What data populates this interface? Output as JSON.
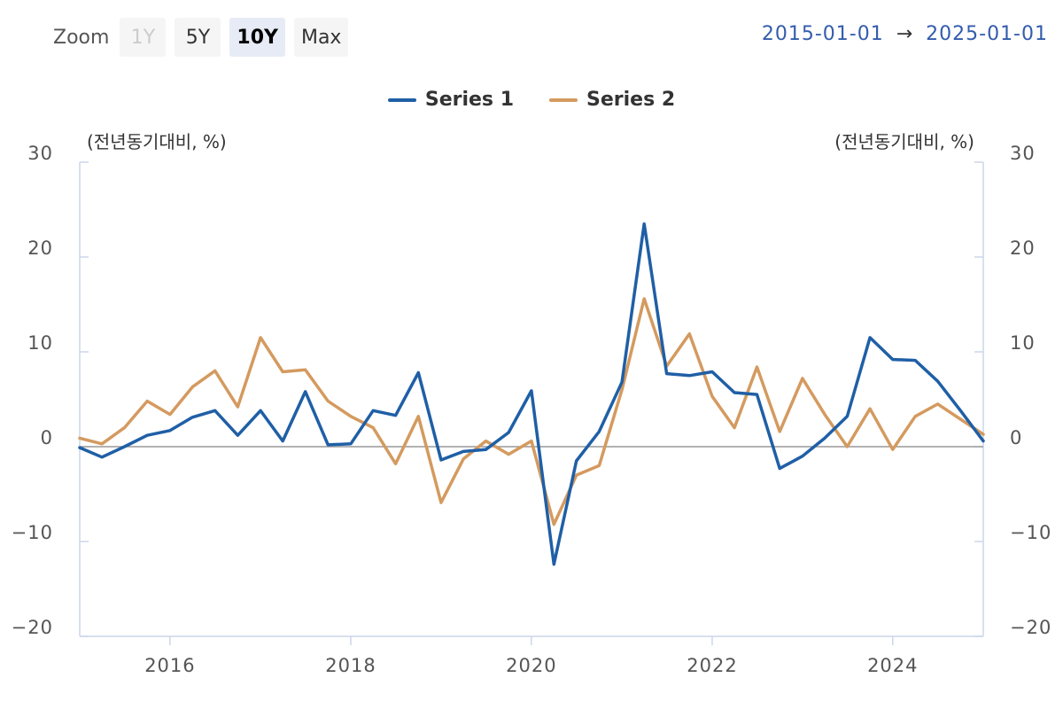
{
  "zoom": {
    "label": "Zoom",
    "buttons": [
      {
        "label": "1Y",
        "state": "disabled"
      },
      {
        "label": "5Y",
        "state": "normal"
      },
      {
        "label": "10Y",
        "state": "selected"
      },
      {
        "label": "Max",
        "state": "normal"
      }
    ]
  },
  "range": {
    "from": "2015-01-01",
    "arrow": "→",
    "to": "2025-01-01"
  },
  "colors": {
    "series1": "#1f5fa6",
    "series2": "#d49a5f",
    "axis": "#ccd6eb",
    "zero_line": "#999999"
  },
  "chart_data": {
    "type": "line",
    "title": "",
    "left_axis": {
      "label": "(전년동기대비, %)",
      "range": [
        -20,
        30
      ],
      "ticks": [
        "30",
        "20",
        "10",
        "0",
        "−10",
        "−20"
      ]
    },
    "right_axis": {
      "label": "(전년동기대비, %)",
      "range": [
        -20,
        30
      ],
      "ticks": [
        "30",
        "20",
        "10",
        "0",
        "−10",
        "−20"
      ]
    },
    "x_ticks": [
      "2016",
      "2018",
      "2020",
      "2022",
      "2024"
    ],
    "x_range": [
      "2015-01-01",
      "2025-01-01"
    ],
    "legend_position": "top-center",
    "grid": false,
    "series": [
      {
        "name": "Series 1",
        "color": "#1f5fa6",
        "points": [
          [
            "2015-01-01",
            -0.1
          ],
          [
            "2015-04-01",
            -1.1
          ],
          [
            "2015-07-01",
            0.0
          ],
          [
            "2015-10-01",
            1.2
          ],
          [
            "2016-01-01",
            1.7
          ],
          [
            "2016-04-01",
            3.1
          ],
          [
            "2016-07-01",
            3.8
          ],
          [
            "2016-10-01",
            1.2
          ],
          [
            "2017-01-01",
            3.8
          ],
          [
            "2017-04-01",
            0.6
          ],
          [
            "2017-07-01",
            5.8
          ],
          [
            "2017-10-01",
            0.2
          ],
          [
            "2018-01-01",
            0.3
          ],
          [
            "2018-04-01",
            3.8
          ],
          [
            "2018-07-01",
            3.3
          ],
          [
            "2018-10-01",
            7.8
          ],
          [
            "2019-01-01",
            -1.4
          ],
          [
            "2019-04-01",
            -0.5
          ],
          [
            "2019-07-01",
            -0.3
          ],
          [
            "2019-10-01",
            1.5
          ],
          [
            "2020-01-01",
            5.9
          ],
          [
            "2020-04-01",
            -12.4
          ],
          [
            "2020-07-01",
            -1.5
          ],
          [
            "2020-10-01",
            1.6
          ],
          [
            "2021-01-01",
            6.8
          ],
          [
            "2021-04-01",
            23.5
          ],
          [
            "2021-07-01",
            7.7
          ],
          [
            "2021-10-01",
            7.5
          ],
          [
            "2022-01-01",
            7.9
          ],
          [
            "2022-04-01",
            5.7
          ],
          [
            "2022-07-01",
            5.5
          ],
          [
            "2022-10-01",
            -2.3
          ],
          [
            "2023-01-01",
            -1.0
          ],
          [
            "2023-04-01",
            0.9
          ],
          [
            "2023-07-01",
            3.2
          ],
          [
            "2023-10-01",
            11.5
          ],
          [
            "2024-01-01",
            9.2
          ],
          [
            "2024-04-01",
            9.1
          ],
          [
            "2024-07-01",
            6.9
          ],
          [
            "2024-10-01",
            3.8
          ],
          [
            "2025-01-01",
            0.6
          ]
        ]
      },
      {
        "name": "Series 2",
        "color": "#d49a5f",
        "points": [
          [
            "2015-01-01",
            0.9
          ],
          [
            "2015-04-01",
            0.3
          ],
          [
            "2015-07-01",
            2.0
          ],
          [
            "2015-10-01",
            4.8
          ],
          [
            "2016-01-01",
            3.4
          ],
          [
            "2016-04-01",
            6.3
          ],
          [
            "2016-07-01",
            8.0
          ],
          [
            "2016-10-01",
            4.2
          ],
          [
            "2017-01-01",
            11.5
          ],
          [
            "2017-04-01",
            7.9
          ],
          [
            "2017-07-01",
            8.1
          ],
          [
            "2017-10-01",
            4.8
          ],
          [
            "2018-01-01",
            3.2
          ],
          [
            "2018-04-01",
            2.0
          ],
          [
            "2018-07-01",
            -1.8
          ],
          [
            "2018-10-01",
            3.2
          ],
          [
            "2019-01-01",
            -5.9
          ],
          [
            "2019-04-01",
            -1.3
          ],
          [
            "2019-07-01",
            0.6
          ],
          [
            "2019-10-01",
            -0.8
          ],
          [
            "2020-01-01",
            0.6
          ],
          [
            "2020-04-01",
            -8.2
          ],
          [
            "2020-07-01",
            -3.0
          ],
          [
            "2020-10-01",
            -2.0
          ],
          [
            "2021-01-01",
            6.0
          ],
          [
            "2021-04-01",
            15.6
          ],
          [
            "2021-07-01",
            8.5
          ],
          [
            "2021-10-01",
            11.9
          ],
          [
            "2022-01-01",
            5.3
          ],
          [
            "2022-04-01",
            2.0
          ],
          [
            "2022-07-01",
            8.4
          ],
          [
            "2022-10-01",
            1.6
          ],
          [
            "2023-01-01",
            7.2
          ],
          [
            "2023-04-01",
            3.4
          ],
          [
            "2023-07-01",
            0.0
          ],
          [
            "2023-10-01",
            4.0
          ],
          [
            "2024-01-01",
            -0.3
          ],
          [
            "2024-04-01",
            3.2
          ],
          [
            "2024-07-01",
            4.5
          ],
          [
            "2024-10-01",
            2.9
          ],
          [
            "2025-01-01",
            1.3
          ]
        ]
      }
    ]
  }
}
